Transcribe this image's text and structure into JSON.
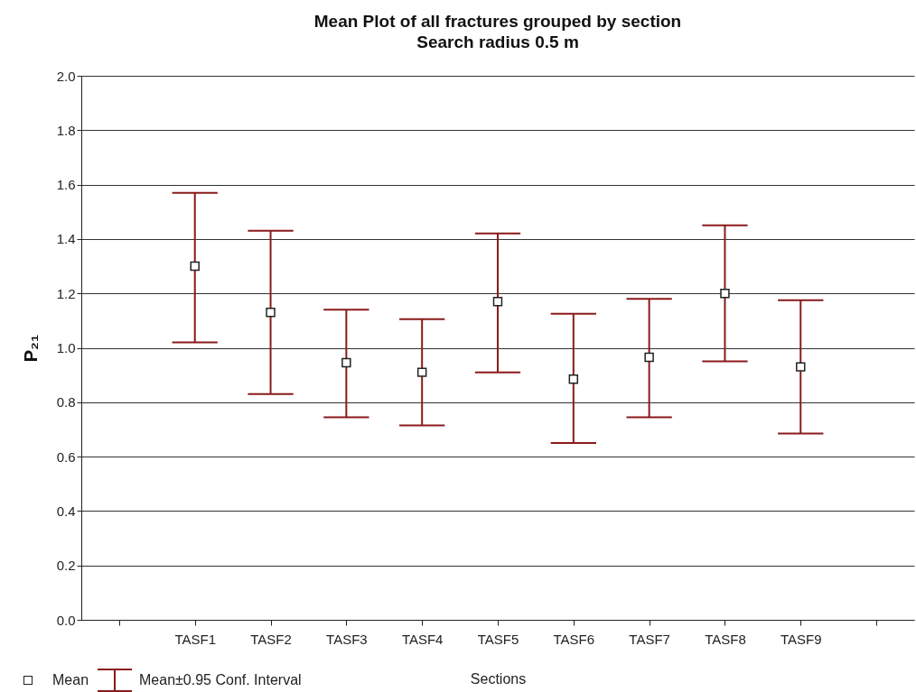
{
  "chart_data": {
    "type": "scatter",
    "title": "Mean Plot of all fractures grouped by section",
    "subtitle": "Search radius 0.5 m",
    "xlabel": "Sections",
    "ylabel": "P₂₁",
    "categories": [
      null,
      "TASF1",
      "TASF2",
      "TASF3",
      "TASF4",
      "TASF5",
      "TASF6",
      "TASF7",
      "TASF8",
      "TASF9",
      null
    ],
    "series": [
      {
        "name": "Mean",
        "color": "#ffffff",
        "values": [
          null,
          1.3,
          1.13,
          0.945,
          0.91,
          1.17,
          0.885,
          0.965,
          1.2,
          0.93,
          null
        ],
        "errors": [
          null,
          [
            1.02,
            1.57
          ],
          [
            0.83,
            1.43
          ],
          [
            0.745,
            1.14
          ],
          [
            0.715,
            1.105
          ],
          [
            0.91,
            1.42
          ],
          [
            0.65,
            1.125
          ],
          [
            0.745,
            1.18
          ],
          [
            0.95,
            1.45
          ],
          [
            0.685,
            1.175
          ],
          null
        ]
      }
    ],
    "annotations": [
      "Mean±0.95 Conf. Interval"
    ],
    "ylim": [
      0,
      2
    ],
    "yticks": [
      {
        "value": 0,
        "label": "0.0"
      },
      0.2,
      0.4,
      0.6,
      0.8,
      {
        "value": 1,
        "label": "1.0"
      },
      1.2,
      1.4,
      1.6,
      1.8,
      {
        "value": 2,
        "label": "2.0"
      }
    ],
    "grid": "y",
    "legend": "bottom left",
    "marker": "square"
  }
}
